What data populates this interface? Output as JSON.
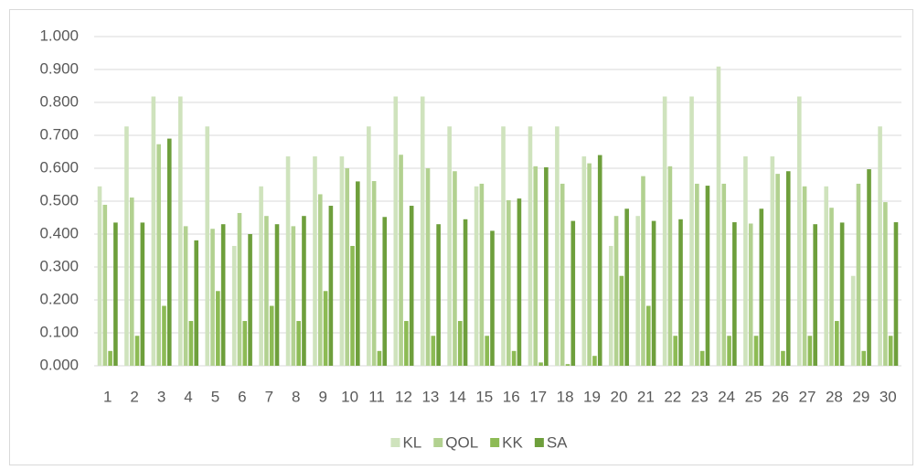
{
  "chart_data": {
    "type": "bar",
    "categories": [
      "1",
      "2",
      "3",
      "4",
      "5",
      "6",
      "7",
      "8",
      "9",
      "10",
      "11",
      "12",
      "13",
      "14",
      "15",
      "16",
      "17",
      "18",
      "19",
      "20",
      "21",
      "22",
      "23",
      "24",
      "25",
      "26",
      "27",
      "28",
      "29",
      "30"
    ],
    "series": [
      {
        "name": "KL",
        "color": "#cfe3bd",
        "values": [
          0.545,
          0.727,
          0.818,
          0.818,
          0.727,
          0.364,
          0.545,
          0.636,
          0.636,
          0.636,
          0.727,
          0.818,
          0.818,
          0.727,
          0.545,
          0.727,
          0.727,
          0.727,
          0.636,
          0.364,
          0.455,
          0.818,
          0.818,
          0.909,
          0.636,
          0.636,
          0.818,
          0.545,
          0.273,
          0.727
        ]
      },
      {
        "name": "QOL",
        "color": "#b2d190",
        "values": [
          0.489,
          0.511,
          0.673,
          0.424,
          0.416,
          0.464,
          0.455,
          0.424,
          0.521,
          0.6,
          0.561,
          0.641,
          0.6,
          0.591,
          0.553,
          0.503,
          0.606,
          0.553,
          0.615,
          0.455,
          0.576,
          0.606,
          0.553,
          0.553,
          0.432,
          0.583,
          0.545,
          0.48,
          0.553,
          0.497
        ]
      },
      {
        "name": "KK",
        "color": "#8dbb55",
        "values": [
          0.045,
          0.091,
          0.182,
          0.136,
          0.227,
          0.136,
          0.182,
          0.136,
          0.227,
          0.364,
          0.045,
          0.136,
          0.091,
          0.136,
          0.091,
          0.045,
          0.01,
          0.005,
          0.03,
          0.273,
          0.182,
          0.091,
          0.045,
          0.091,
          0.091,
          0.045,
          0.091,
          0.136,
          0.045,
          0.091
        ]
      },
      {
        "name": "SA",
        "color": "#6e9f3c",
        "values": [
          0.435,
          0.435,
          0.69,
          0.381,
          0.43,
          0.4,
          0.43,
          0.455,
          0.486,
          0.56,
          0.452,
          0.486,
          0.43,
          0.445,
          0.41,
          0.508,
          0.603,
          0.44,
          0.64,
          0.477,
          0.44,
          0.445,
          0.547,
          0.436,
          0.477,
          0.591,
          0.43,
          0.435,
          0.597,
          0.436
        ]
      }
    ],
    "ylim": [
      0,
      1
    ],
    "yticks": [
      {
        "value": 0,
        "label": "0.000"
      },
      {
        "value": 0.1,
        "label": "0.100"
      },
      {
        "value": 0.2,
        "label": "0.200"
      },
      {
        "value": 0.3,
        "label": "0.300"
      },
      {
        "value": 0.4,
        "label": "0.400"
      },
      {
        "value": 0.5,
        "label": "0.500"
      },
      {
        "value": 0.6,
        "label": "0.600"
      },
      {
        "value": 0.7,
        "label": "0.700"
      },
      {
        "value": 0.8,
        "label": "0.800"
      },
      {
        "value": 0.9,
        "label": "0.900"
      },
      {
        "value": 1,
        "label": "1.000"
      }
    ],
    "grid": true,
    "legend": "bottom"
  }
}
